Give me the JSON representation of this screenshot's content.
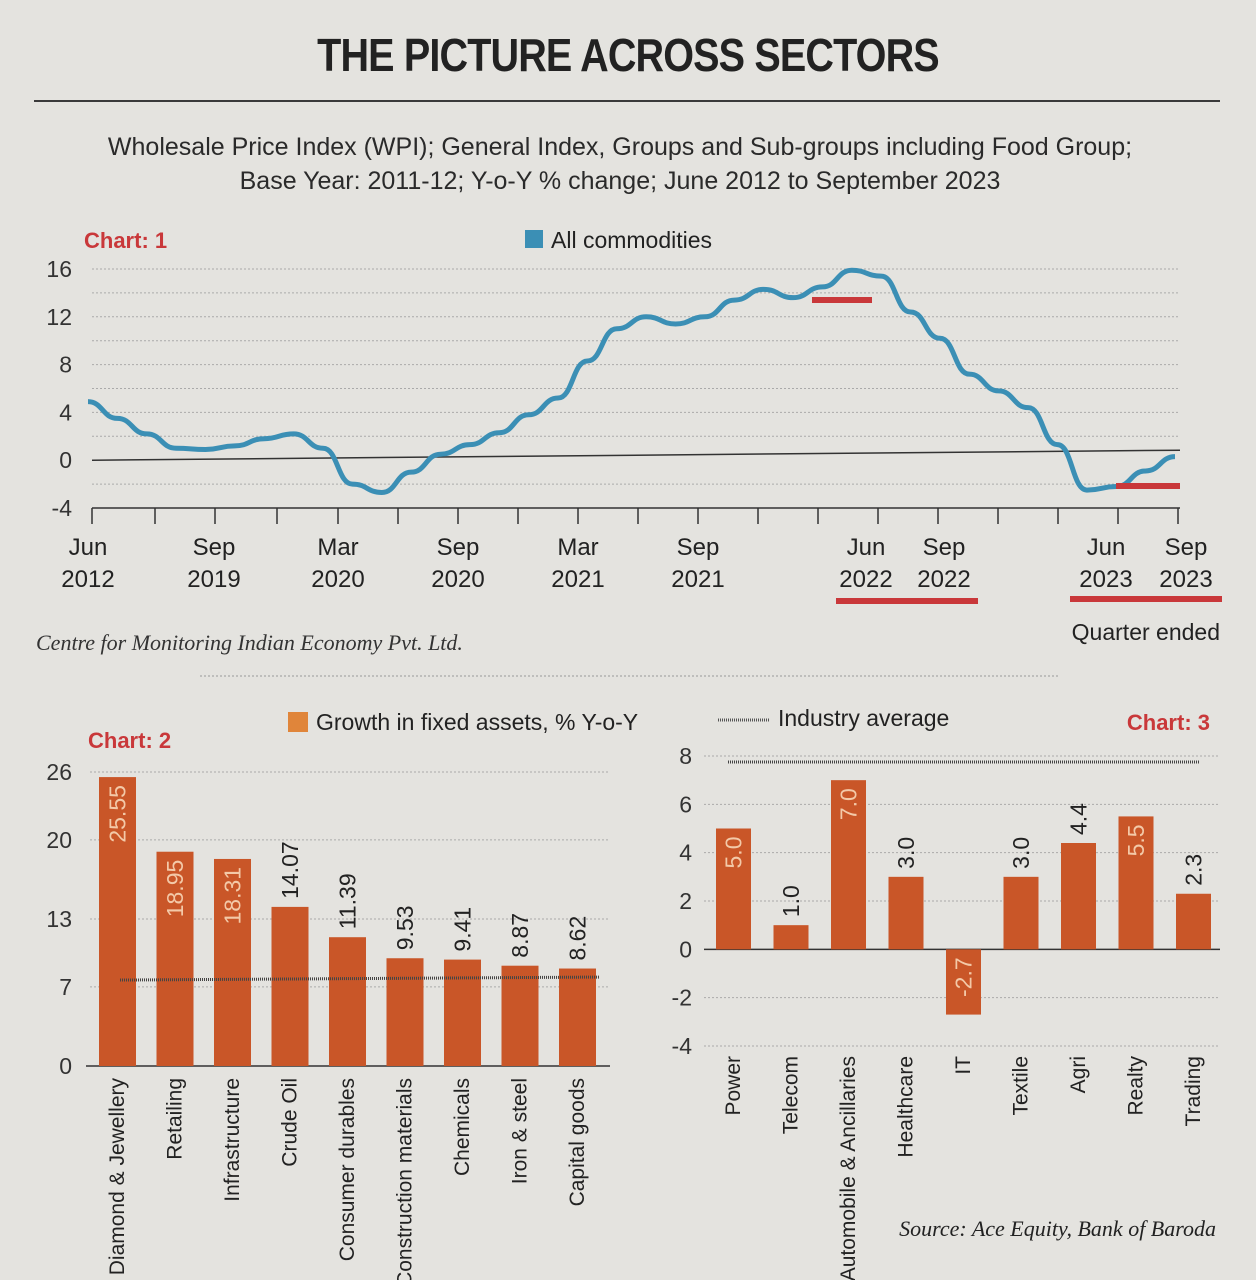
{
  "headline": "THE PICTURE ACROSS SECTORS",
  "subtitle_line1": "Wholesale Price Index (WPI); General Index, Groups and Sub-groups including Food Group;",
  "subtitle_line2": "Base Year: 2011-12; Y-o-Y % change; June 2012 to September 2023",
  "colors": {
    "line": "#3b8fb5",
    "bar": "#c95628",
    "accent_red": "#c9383a",
    "label_red": "#c9383a",
    "background": "#e4e3df"
  },
  "chart1": {
    "label": "Chart: 1",
    "legend": "All commodities",
    "source": "Centre for Monitoring Indian Economy Pvt. Ltd.",
    "quarter_note": "Quarter ended",
    "tick_row1": [
      "Jun",
      "Sep",
      "Mar",
      "Sep",
      "Mar",
      "Sep",
      "Jun",
      "Sep",
      "Jun",
      "Sep"
    ],
    "tick_row2": [
      "2012",
      "2019",
      "2020",
      "2020",
      "2021",
      "2021",
      "2022",
      "2022",
      "2023",
      "2023"
    ]
  },
  "chart2": {
    "label": "Chart: 2",
    "legend": "Growth in fixed assets, % Y-o-Y"
  },
  "chart3": {
    "label": "Chart: 3",
    "legend": "Industry average",
    "source": "Source: Ace Equity, Bank of Baroda"
  },
  "chart_data": [
    {
      "type": "line",
      "series": [
        {
          "name": "All commodities",
          "values": [
            4.9,
            3.5,
            2.2,
            1.0,
            0.9,
            1.2,
            1.8,
            2.2,
            1.0,
            -2.0,
            -2.7,
            -1.0,
            0.5,
            1.3,
            2.3,
            3.8,
            5.2,
            8.3,
            11.0,
            12.0,
            11.4,
            12.0,
            13.4,
            14.3,
            13.6,
            14.5,
            15.9,
            15.4,
            12.4,
            10.2,
            7.2,
            5.8,
            4.4,
            1.3,
            -2.5,
            -2.2,
            -0.9,
            0.3
          ]
        }
      ],
      "x_ticks": [
        "Jun 2012",
        "Sep 2019",
        "Mar 2020",
        "Sep 2020",
        "Mar 2021",
        "Sep 2021",
        "Jun 2022",
        "Sep 2022",
        "Jun 2023",
        "Sep 2023"
      ],
      "ylim": [
        -4,
        16
      ],
      "yticks": [
        16,
        12,
        8,
        4,
        0,
        -4
      ],
      "grid": true
    },
    {
      "type": "bar",
      "categories": [
        "Diamond & Jewellery",
        "Retailing",
        "Infrastructure",
        "Crude Oil",
        "Consumer durables",
        "Construction materials",
        "Chemicals",
        "Iron & steel",
        "Capital goods"
      ],
      "values": [
        25.55,
        18.95,
        18.31,
        14.07,
        11.39,
        9.53,
        9.41,
        8.87,
        8.62
      ],
      "labels": [
        "25.55",
        "18.95",
        "18.31",
        "14.07",
        "11.39",
        "9.53",
        "9.41",
        "8.87",
        "8.62"
      ],
      "ylim": [
        0,
        26
      ],
      "yticks": [
        26,
        20,
        13,
        7,
        0
      ],
      "industry_average": 7.6
    },
    {
      "type": "bar",
      "categories": [
        "Power",
        "Telecom",
        "Automobile & Ancillaries",
        "Healthcare",
        "IT",
        "Textile",
        "Agri",
        "Realty",
        "Trading"
      ],
      "values": [
        5.0,
        1.0,
        7.0,
        3.0,
        -2.7,
        3.0,
        4.4,
        5.5,
        2.3
      ],
      "labels": [
        "5.0",
        "1.0",
        "7.0",
        "3.0",
        "-2.7",
        "3.0",
        "4.4",
        "5.5",
        "2.3"
      ],
      "ylim": [
        -4,
        8
      ],
      "yticks": [
        8,
        6,
        4,
        2,
        0,
        -2,
        -4
      ],
      "industry_average": 8
    }
  ]
}
